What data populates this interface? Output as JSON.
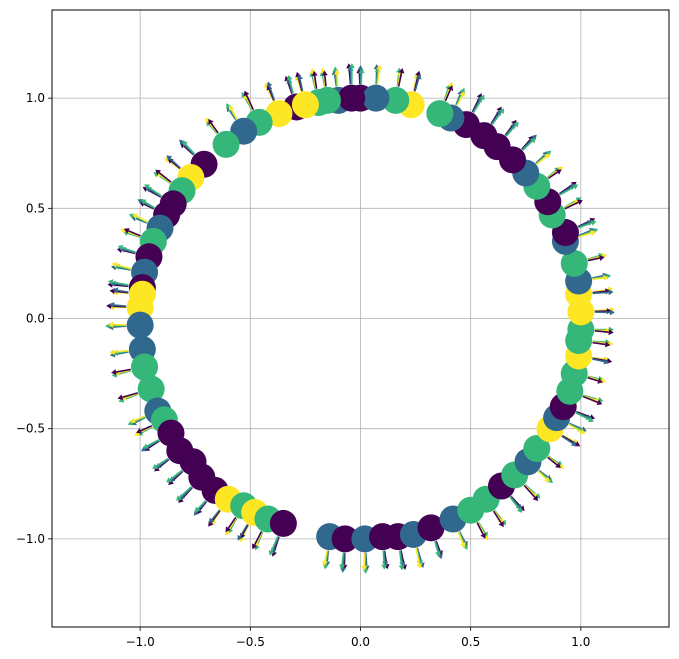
{
  "chart_data": {
    "type": "scatter",
    "description_note": "",
    "title": "",
    "xlabel": "",
    "ylabel": "",
    "xlim": [
      -1.4,
      1.4
    ],
    "ylim": [
      -1.4,
      1.4
    ],
    "grid": true,
    "xticks": [
      -1.0,
      -0.5,
      0.0,
      0.5,
      1.0
    ],
    "yticks": [
      -1.0,
      -0.5,
      0.0,
      0.5,
      1.0
    ],
    "xtick_labels": [
      "−1.0",
      "−0.5",
      "0.0",
      "0.5",
      "1.0"
    ],
    "ytick_labels": [
      "−1.0",
      "−0.5",
      "0.0",
      "0.5",
      "1.0"
    ],
    "colormap": [
      "#440154",
      "#31688e",
      "#35b779",
      "#fde725"
    ],
    "overlay": "quiver arrows pointing radially outward from each marker",
    "points": [
      {
        "x": 0.0,
        "y": 1.0,
        "c": 0
      },
      {
        "x": -0.1,
        "y": 0.99,
        "c": 1
      },
      {
        "x": -0.19,
        "y": 0.98,
        "c": 2
      },
      {
        "x": -0.29,
        "y": 0.96,
        "c": 0
      },
      {
        "x": -0.37,
        "y": 0.93,
        "c": 3
      },
      {
        "x": -0.46,
        "y": 0.89,
        "c": 2
      },
      {
        "x": -0.53,
        "y": 0.85,
        "c": 1
      },
      {
        "x": -0.61,
        "y": 0.79,
        "c": 2
      },
      {
        "x": -0.71,
        "y": 0.7,
        "c": 0
      },
      {
        "x": -0.77,
        "y": 0.64,
        "c": 3
      },
      {
        "x": -0.81,
        "y": 0.58,
        "c": 2
      },
      {
        "x": -0.85,
        "y": 0.52,
        "c": 0
      },
      {
        "x": -0.88,
        "y": 0.47,
        "c": 0
      },
      {
        "x": -0.91,
        "y": 0.41,
        "c": 1
      },
      {
        "x": -0.94,
        "y": 0.35,
        "c": 2
      },
      {
        "x": -0.96,
        "y": 0.28,
        "c": 0
      },
      {
        "x": -0.98,
        "y": 0.21,
        "c": 1
      },
      {
        "x": -0.99,
        "y": 0.14,
        "c": 0
      },
      {
        "x": -0.99,
        "y": 0.11,
        "c": 3
      },
      {
        "x": -1.0,
        "y": 0.05,
        "c": 3
      },
      {
        "x": -1.0,
        "y": -0.03,
        "c": 1
      },
      {
        "x": -0.99,
        "y": -0.14,
        "c": 1
      },
      {
        "x": -0.98,
        "y": -0.22,
        "c": 2
      },
      {
        "x": -0.95,
        "y": -0.32,
        "c": 2
      },
      {
        "x": -0.92,
        "y": -0.42,
        "c": 1
      },
      {
        "x": -0.89,
        "y": -0.46,
        "c": 2
      },
      {
        "x": -0.86,
        "y": -0.52,
        "c": 0
      },
      {
        "x": -0.82,
        "y": -0.6,
        "c": 0
      },
      {
        "x": -0.76,
        "y": -0.65,
        "c": 0
      },
      {
        "x": -0.72,
        "y": -0.72,
        "c": 0
      },
      {
        "x": -0.66,
        "y": -0.78,
        "c": 0
      },
      {
        "x": -0.6,
        "y": -0.82,
        "c": 3
      },
      {
        "x": -0.53,
        "y": -0.85,
        "c": 2
      },
      {
        "x": -0.48,
        "y": -0.88,
        "c": 3
      },
      {
        "x": -0.42,
        "y": -0.91,
        "c": 2
      },
      {
        "x": -0.35,
        "y": -0.93,
        "c": 0
      },
      {
        "x": -0.14,
        "y": -0.99,
        "c": 1
      },
      {
        "x": -0.07,
        "y": -1.0,
        "c": 0
      },
      {
        "x": 0.02,
        "y": -1.0,
        "c": 1
      },
      {
        "x": 0.1,
        "y": -0.99,
        "c": 0
      },
      {
        "x": 0.17,
        "y": -0.99,
        "c": 0
      },
      {
        "x": 0.24,
        "y": -0.98,
        "c": 1
      },
      {
        "x": 0.32,
        "y": -0.95,
        "c": 0
      },
      {
        "x": 0.42,
        "y": -0.91,
        "c": 1
      },
      {
        "x": 0.5,
        "y": -0.87,
        "c": 2
      },
      {
        "x": 0.57,
        "y": -0.82,
        "c": 2
      },
      {
        "x": 0.64,
        "y": -0.76,
        "c": 0
      },
      {
        "x": 0.7,
        "y": -0.71,
        "c": 2
      },
      {
        "x": 0.76,
        "y": -0.65,
        "c": 1
      },
      {
        "x": 0.8,
        "y": -0.59,
        "c": 2
      },
      {
        "x": 0.86,
        "y": -0.5,
        "c": 3
      },
      {
        "x": 0.89,
        "y": -0.45,
        "c": 1
      },
      {
        "x": 0.92,
        "y": -0.4,
        "c": 0
      },
      {
        "x": 0.95,
        "y": -0.33,
        "c": 2
      },
      {
        "x": 0.97,
        "y": -0.25,
        "c": 2
      },
      {
        "x": 0.99,
        "y": -0.17,
        "c": 3
      },
      {
        "x": 0.99,
        "y": -0.1,
        "c": 2
      },
      {
        "x": 1.0,
        "y": -0.05,
        "c": 2
      },
      {
        "x": 1.0,
        "y": 0.03,
        "c": 3
      },
      {
        "x": 0.99,
        "y": 0.11,
        "c": 3
      },
      {
        "x": 0.99,
        "y": 0.17,
        "c": 1
      },
      {
        "x": 0.97,
        "y": 0.25,
        "c": 2
      },
      {
        "x": 0.93,
        "y": 0.35,
        "c": 1
      },
      {
        "x": 0.93,
        "y": 0.39,
        "c": 0
      },
      {
        "x": 0.87,
        "y": 0.47,
        "c": 2
      },
      {
        "x": 0.85,
        "y": 0.53,
        "c": 0
      },
      {
        "x": 0.8,
        "y": 0.6,
        "c": 2
      },
      {
        "x": 0.75,
        "y": 0.66,
        "c": 1
      },
      {
        "x": 0.69,
        "y": 0.72,
        "c": 0
      },
      {
        "x": 0.62,
        "y": 0.78,
        "c": 0
      },
      {
        "x": 0.56,
        "y": 0.83,
        "c": 0
      },
      {
        "x": 0.48,
        "y": 0.88,
        "c": 0
      },
      {
        "x": 0.41,
        "y": 0.91,
        "c": 1
      },
      {
        "x": 0.36,
        "y": 0.93,
        "c": 2
      },
      {
        "x": 0.23,
        "y": 0.97,
        "c": 3
      },
      {
        "x": 0.16,
        "y": 0.99,
        "c": 2
      },
      {
        "x": 0.07,
        "y": 1.0,
        "c": 1
      },
      {
        "x": -0.04,
        "y": 1.0,
        "c": 0
      },
      {
        "x": -0.15,
        "y": 0.99,
        "c": 2
      },
      {
        "x": -0.25,
        "y": 0.97,
        "c": 3
      }
    ]
  }
}
